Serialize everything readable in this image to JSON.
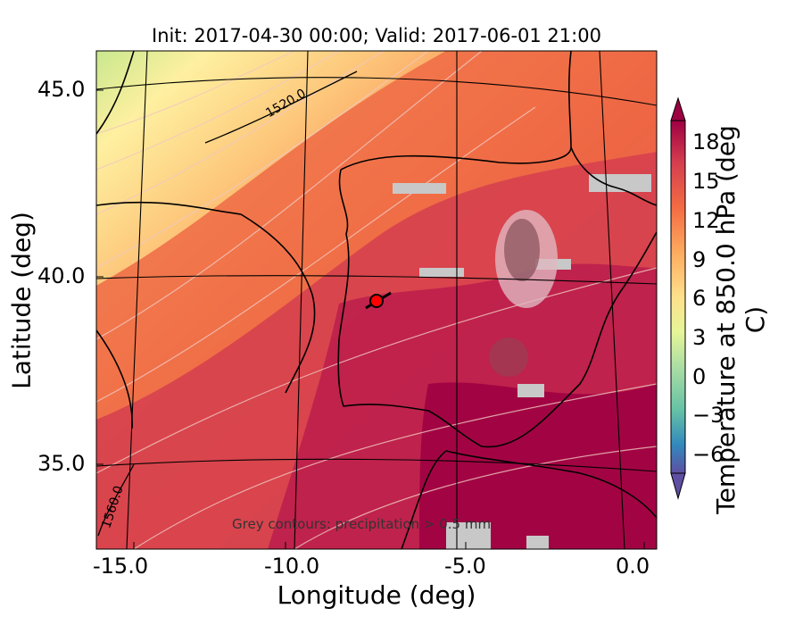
{
  "title": "Init: 2017-04-30 00:00; Valid: 2017-06-01 21:00",
  "axes": {
    "xlabel": "Longitude (deg)",
    "ylabel": "Latitude (deg)",
    "xticks": [
      "-15.0",
      "-10.0",
      "-5.0",
      "0.0"
    ],
    "yticks": [
      "45.0",
      "40.0",
      "35.0"
    ]
  },
  "colorbar": {
    "label": "Temperature at 850.0 hPa (deg C)",
    "ticks": [
      "18",
      "15",
      "12",
      "9",
      "6",
      "3",
      "0",
      "−3",
      "−6"
    ]
  },
  "contour_labels": [
    "1520.0",
    "1560.0"
  ],
  "note": "Grey contours: precipitation > 0.5 mm",
  "colors": {
    "cool": "#d6ee9a",
    "mild": "#fee99a",
    "warm": "#fb9a59",
    "hot": "#e44e4a",
    "very_hot": "#c2264f",
    "extreme": "#9e0142",
    "precip": "#c8c8c8",
    "marker": "#ff0000"
  },
  "markers": [
    {
      "name": "location-marker",
      "lon": -7.6,
      "lat": 39.3
    }
  ]
}
